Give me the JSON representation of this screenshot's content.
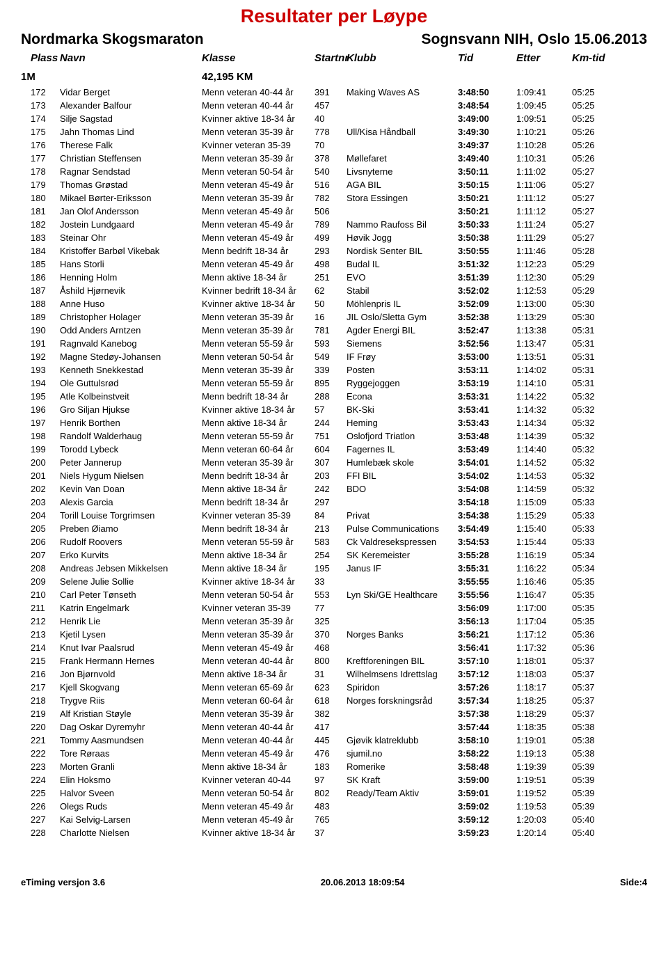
{
  "title": "Resultater per Løype",
  "event_left": "Nordmarka Skogsmaraton",
  "event_right": "Sognsvann NIH, Oslo  15.06.2013",
  "columns": {
    "plass": "Plass",
    "navn": "Navn",
    "klasse": "Klasse",
    "startnr": "Startnr",
    "klubb": "Klubb",
    "tid": "Tid",
    "etter": "Etter",
    "kmtid": "Km-tid"
  },
  "group": {
    "name": "1M",
    "distance": "42,195 KM"
  },
  "rows": [
    {
      "p": "172",
      "n": "Vidar Berget",
      "k": "Menn veteran 40-44 år",
      "s": "391",
      "kl": "Making Waves AS",
      "t": "3:48:50",
      "e": "1:09:41",
      "km": "05:25"
    },
    {
      "p": "173",
      "n": "Alexander Balfour",
      "k": "Menn veteran 40-44 år",
      "s": "457",
      "kl": "",
      "t": "3:48:54",
      "e": "1:09:45",
      "km": "05:25"
    },
    {
      "p": "174",
      "n": "Silje Sagstad",
      "k": "Kvinner aktive 18-34 år",
      "s": "40",
      "kl": "",
      "t": "3:49:00",
      "e": "1:09:51",
      "km": "05:25"
    },
    {
      "p": "175",
      "n": "Jahn Thomas Lind",
      "k": "Menn veteran 35-39 år",
      "s": "778",
      "kl": "Ull/Kisa Håndball",
      "t": "3:49:30",
      "e": "1:10:21",
      "km": "05:26"
    },
    {
      "p": "176",
      "n": "Therese Falk",
      "k": "Kvinner veteran 35-39",
      "s": "70",
      "kl": "",
      "t": "3:49:37",
      "e": "1:10:28",
      "km": "05:26"
    },
    {
      "p": "177",
      "n": "Christian Steffensen",
      "k": "Menn veteran 35-39 år",
      "s": "378",
      "kl": "Møllefaret",
      "t": "3:49:40",
      "e": "1:10:31",
      "km": "05:26"
    },
    {
      "p": "178",
      "n": "Ragnar Sendstad",
      "k": "Menn veteran 50-54 år",
      "s": "540",
      "kl": "Livsnyterne",
      "t": "3:50:11",
      "e": "1:11:02",
      "km": "05:27"
    },
    {
      "p": "179",
      "n": "Thomas Grøstad",
      "k": "Menn veteran 45-49 år",
      "s": "516",
      "kl": "AGA BIL",
      "t": "3:50:15",
      "e": "1:11:06",
      "km": "05:27"
    },
    {
      "p": "180",
      "n": "Mikael Børter-Eriksson",
      "k": "Menn veteran 35-39 år",
      "s": "782",
      "kl": "Stora Essingen",
      "t": "3:50:21",
      "e": "1:11:12",
      "km": "05:27"
    },
    {
      "p": "181",
      "n": "Jan Olof Andersson",
      "k": "Menn veteran 45-49 år",
      "s": "506",
      "kl": "",
      "t": "3:50:21",
      "e": "1:11:12",
      "km": "05:27"
    },
    {
      "p": "182",
      "n": "Jostein Lundgaard",
      "k": "Menn veteran 45-49 år",
      "s": "789",
      "kl": "Nammo Raufoss Bil",
      "t": "3:50:33",
      "e": "1:11:24",
      "km": "05:27"
    },
    {
      "p": "183",
      "n": "Steinar Ohr",
      "k": "Menn veteran 45-49 år",
      "s": "499",
      "kl": "Høvik Jogg",
      "t": "3:50:38",
      "e": "1:11:29",
      "km": "05:27"
    },
    {
      "p": "184",
      "n": "Kristoffer Barbøl Vikebak",
      "k": "Menn bedrift 18-34 år",
      "s": "293",
      "kl": "Nordisk Senter BIL",
      "t": "3:50:55",
      "e": "1:11:46",
      "km": "05:28"
    },
    {
      "p": "185",
      "n": "Hans Storli",
      "k": "Menn veteran 45-49 år",
      "s": "498",
      "kl": "Budal IL",
      "t": "3:51:32",
      "e": "1:12:23",
      "km": "05:29"
    },
    {
      "p": "186",
      "n": "Henning Holm",
      "k": "Menn aktive 18-34 år",
      "s": "251",
      "kl": "EVO",
      "t": "3:51:39",
      "e": "1:12:30",
      "km": "05:29"
    },
    {
      "p": "187",
      "n": "Åshild Hjørnevik",
      "k": "Kvinner bedrift 18-34 år",
      "s": "62",
      "kl": "Stabil",
      "t": "3:52:02",
      "e": "1:12:53",
      "km": "05:29"
    },
    {
      "p": "188",
      "n": "Anne Huso",
      "k": "Kvinner aktive 18-34 år",
      "s": "50",
      "kl": "Möhlenpris IL",
      "t": "3:52:09",
      "e": "1:13:00",
      "km": "05:30"
    },
    {
      "p": "189",
      "n": "Christopher Holager",
      "k": "Menn veteran 35-39 år",
      "s": "16",
      "kl": "JIL Oslo/Sletta Gym",
      "t": "3:52:38",
      "e": "1:13:29",
      "km": "05:30"
    },
    {
      "p": "190",
      "n": "Odd Anders Arntzen",
      "k": "Menn veteran 35-39 år",
      "s": "781",
      "kl": "Agder Energi BIL",
      "t": "3:52:47",
      "e": "1:13:38",
      "km": "05:31"
    },
    {
      "p": "191",
      "n": "Ragnvald Kanebog",
      "k": "Menn veteran 55-59 år",
      "s": "593",
      "kl": "Siemens",
      "t": "3:52:56",
      "e": "1:13:47",
      "km": "05:31"
    },
    {
      "p": "192",
      "n": "Magne Stedøy-Johansen",
      "k": "Menn veteran 50-54 år",
      "s": "549",
      "kl": "IF Frøy",
      "t": "3:53:00",
      "e": "1:13:51",
      "km": "05:31"
    },
    {
      "p": "193",
      "n": "Kenneth Snekkestad",
      "k": "Menn veteran 35-39 år",
      "s": "339",
      "kl": "Posten",
      "t": "3:53:11",
      "e": "1:14:02",
      "km": "05:31"
    },
    {
      "p": "194",
      "n": "Ole Guttulsrød",
      "k": "Menn veteran 55-59 år",
      "s": "895",
      "kl": "Ryggejoggen",
      "t": "3:53:19",
      "e": "1:14:10",
      "km": "05:31"
    },
    {
      "p": "195",
      "n": "Atle Kolbeinstveit",
      "k": "Menn bedrift 18-34 år",
      "s": "288",
      "kl": "Econa",
      "t": "3:53:31",
      "e": "1:14:22",
      "km": "05:32"
    },
    {
      "p": "196",
      "n": "Gro Siljan Hjukse",
      "k": "Kvinner aktive 18-34 år",
      "s": "57",
      "kl": "BK-Ski",
      "t": "3:53:41",
      "e": "1:14:32",
      "km": "05:32"
    },
    {
      "p": "197",
      "n": "Henrik Borthen",
      "k": "Menn aktive 18-34 år",
      "s": "244",
      "kl": "Heming",
      "t": "3:53:43",
      "e": "1:14:34",
      "km": "05:32"
    },
    {
      "p": "198",
      "n": "Randolf Walderhaug",
      "k": "Menn veteran 55-59 år",
      "s": "751",
      "kl": "Oslofjord Triatlon",
      "t": "3:53:48",
      "e": "1:14:39",
      "km": "05:32"
    },
    {
      "p": "199",
      "n": "Torodd Lybeck",
      "k": "Menn veteran 60-64 år",
      "s": "604",
      "kl": "Fagernes IL",
      "t": "3:53:49",
      "e": "1:14:40",
      "km": "05:32"
    },
    {
      "p": "200",
      "n": "Peter Jannerup",
      "k": "Menn veteran 35-39 år",
      "s": "307",
      "kl": "Humlebæk skole",
      "t": "3:54:01",
      "e": "1:14:52",
      "km": "05:32"
    },
    {
      "p": "201",
      "n": "Niels Hygum Nielsen",
      "k": "Menn bedrift 18-34 år",
      "s": "203",
      "kl": "FFI BIL",
      "t": "3:54:02",
      "e": "1:14:53",
      "km": "05:32"
    },
    {
      "p": "202",
      "n": "Kevin Van Doan",
      "k": "Menn aktive 18-34 år",
      "s": "242",
      "kl": "BDO",
      "t": "3:54:08",
      "e": "1:14:59",
      "km": "05:32"
    },
    {
      "p": "203",
      "n": "Alexis Garcia",
      "k": "Menn bedrift 18-34 år",
      "s": "297",
      "kl": "",
      "t": "3:54:18",
      "e": "1:15:09",
      "km": "05:33"
    },
    {
      "p": "204",
      "n": "Torill Louise Torgrimsen",
      "k": "Kvinner veteran 35-39",
      "s": "84",
      "kl": "Privat",
      "t": "3:54:38",
      "e": "1:15:29",
      "km": "05:33"
    },
    {
      "p": "205",
      "n": "Preben Øiamo",
      "k": "Menn bedrift 18-34 år",
      "s": "213",
      "kl": "Pulse Communications",
      "t": "3:54:49",
      "e": "1:15:40",
      "km": "05:33"
    },
    {
      "p": "206",
      "n": "Rudolf Roovers",
      "k": "Menn veteran 55-59 år",
      "s": "583",
      "kl": "Ck Valdresekspressen",
      "t": "3:54:53",
      "e": "1:15:44",
      "km": "05:33"
    },
    {
      "p": "207",
      "n": "Erko Kurvits",
      "k": "Menn aktive 18-34 år",
      "s": "254",
      "kl": "SK Keremeister",
      "t": "3:55:28",
      "e": "1:16:19",
      "km": "05:34"
    },
    {
      "p": "208",
      "n": "Andreas Jebsen Mikkelsen",
      "k": "Menn aktive 18-34 år",
      "s": "195",
      "kl": "Janus IF",
      "t": "3:55:31",
      "e": "1:16:22",
      "km": "05:34"
    },
    {
      "p": "209",
      "n": "Selene Julie Sollie",
      "k": "Kvinner aktive 18-34 år",
      "s": "33",
      "kl": "",
      "t": "3:55:55",
      "e": "1:16:46",
      "km": "05:35"
    },
    {
      "p": "210",
      "n": "Carl Peter Tønseth",
      "k": "Menn veteran 50-54 år",
      "s": "553",
      "kl": "Lyn Ski/GE Healthcare",
      "t": "3:55:56",
      "e": "1:16:47",
      "km": "05:35"
    },
    {
      "p": "211",
      "n": "Katrin Engelmark",
      "k": "Kvinner veteran 35-39",
      "s": "77",
      "kl": "",
      "t": "3:56:09",
      "e": "1:17:00",
      "km": "05:35"
    },
    {
      "p": "212",
      "n": "Henrik Lie",
      "k": "Menn veteran 35-39 år",
      "s": "325",
      "kl": "",
      "t": "3:56:13",
      "e": "1:17:04",
      "km": "05:35"
    },
    {
      "p": "213",
      "n": "Kjetil Lysen",
      "k": "Menn veteran 35-39 år",
      "s": "370",
      "kl": "Norges Banks",
      "t": "3:56:21",
      "e": "1:17:12",
      "km": "05:36"
    },
    {
      "p": "214",
      "n": "Knut Ivar Paalsrud",
      "k": "Menn veteran 45-49 år",
      "s": "468",
      "kl": "",
      "t": "3:56:41",
      "e": "1:17:32",
      "km": "05:36"
    },
    {
      "p": "215",
      "n": "Frank Hermann Hernes",
      "k": "Menn veteran 40-44 år",
      "s": "800",
      "kl": "Kreftforeningen BIL",
      "t": "3:57:10",
      "e": "1:18:01",
      "km": "05:37"
    },
    {
      "p": "216",
      "n": "Jon Bjørnvold",
      "k": "Menn aktive 18-34 år",
      "s": "31",
      "kl": "Wilhelmsens Idrettslag",
      "t": "3:57:12",
      "e": "1:18:03",
      "km": "05:37"
    },
    {
      "p": "217",
      "n": "Kjell Skogvang",
      "k": "Menn veteran 65-69 år",
      "s": "623",
      "kl": "Spiridon",
      "t": "3:57:26",
      "e": "1:18:17",
      "km": "05:37"
    },
    {
      "p": "218",
      "n": "Trygve Riis",
      "k": "Menn veteran 60-64 år",
      "s": "618",
      "kl": "Norges forskningsråd",
      "t": "3:57:34",
      "e": "1:18:25",
      "km": "05:37"
    },
    {
      "p": "219",
      "n": "Alf Kristian Støyle",
      "k": "Menn veteran 35-39 år",
      "s": "382",
      "kl": "",
      "t": "3:57:38",
      "e": "1:18:29",
      "km": "05:37"
    },
    {
      "p": "220",
      "n": "Dag Oskar Dyremyhr",
      "k": "Menn veteran 40-44 år",
      "s": "417",
      "kl": "",
      "t": "3:57:44",
      "e": "1:18:35",
      "km": "05:38"
    },
    {
      "p": "221",
      "n": "Tommy Aasmundsen",
      "k": "Menn veteran 40-44 år",
      "s": "445",
      "kl": "Gjøvik klatreklubb",
      "t": "3:58:10",
      "e": "1:19:01",
      "km": "05:38"
    },
    {
      "p": "222",
      "n": "Tore Røraas",
      "k": "Menn veteran 45-49 år",
      "s": "476",
      "kl": "sjumil.no",
      "t": "3:58:22",
      "e": "1:19:13",
      "km": "05:38"
    },
    {
      "p": "223",
      "n": "Morten Granli",
      "k": "Menn aktive 18-34 år",
      "s": "183",
      "kl": "Romerike",
      "t": "3:58:48",
      "e": "1:19:39",
      "km": "05:39"
    },
    {
      "p": "224",
      "n": "Elin Hoksmo",
      "k": "Kvinner veteran 40-44",
      "s": "97",
      "kl": "SK Kraft",
      "t": "3:59:00",
      "e": "1:19:51",
      "km": "05:39"
    },
    {
      "p": "225",
      "n": "Halvor Sveen",
      "k": "Menn veteran 50-54 år",
      "s": "802",
      "kl": "Ready/Team Aktiv",
      "t": "3:59:01",
      "e": "1:19:52",
      "km": "05:39"
    },
    {
      "p": "226",
      "n": "Olegs Ruds",
      "k": "Menn veteran 45-49 år",
      "s": "483",
      "kl": "",
      "t": "3:59:02",
      "e": "1:19:53",
      "km": "05:39"
    },
    {
      "p": "227",
      "n": "Kai Selvig-Larsen",
      "k": "Menn veteran 45-49 år",
      "s": "765",
      "kl": "",
      "t": "3:59:12",
      "e": "1:20:03",
      "km": "05:40"
    },
    {
      "p": "228",
      "n": "Charlotte Nielsen",
      "k": "Kvinner aktive 18-34 år",
      "s": "37",
      "kl": "",
      "t": "3:59:23",
      "e": "1:20:14",
      "km": "05:40"
    }
  ],
  "footer": {
    "left": "eTiming versjon 3.6",
    "center": "20.06.2013 18:09:54",
    "right": "Side:4"
  }
}
